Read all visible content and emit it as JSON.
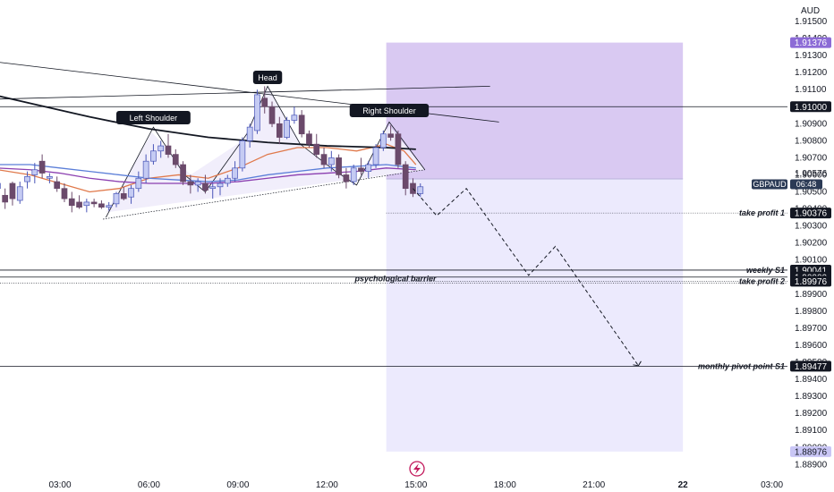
{
  "chart_data": {
    "type": "candlestick",
    "symbol": "GBPAUD",
    "currency": "AUD",
    "countdown": "06:48",
    "current_price": "1.90576",
    "y_range": [
      1.8885,
      1.916
    ],
    "y_ticks": [
      "1.91500",
      "1.91400",
      "1.91300",
      "1.91200",
      "1.91100",
      "1.91000",
      "1.90900",
      "1.90800",
      "1.90700",
      "1.90600",
      "1.90500",
      "1.90400",
      "1.90300",
      "1.90200",
      "1.90100",
      "1.90000",
      "1.89900",
      "1.89800",
      "1.89700",
      "1.89600",
      "1.89500",
      "1.89400",
      "1.89300",
      "1.89200",
      "1.89100",
      "1.89000",
      "1.88900"
    ],
    "x_ticks": [
      {
        "label": "03:00",
        "t": 3
      },
      {
        "label": "06:00",
        "t": 6
      },
      {
        "label": "09:00",
        "t": 9
      },
      {
        "label": "12:00",
        "t": 12
      },
      {
        "label": "15:00",
        "t": 15
      },
      {
        "label": "18:00",
        "t": 18
      },
      {
        "label": "21:00",
        "t": 21
      },
      {
        "label": "22",
        "t": 24
      },
      {
        "label": "03:00",
        "t": 27
      }
    ],
    "x_range": [
      1,
      28
    ],
    "candles": [
      [
        0.9,
        1.9052,
        1.9059,
        1.9045,
        1.9055
      ],
      [
        1.15,
        1.9048,
        1.9052,
        1.904,
        1.9044
      ],
      [
        1.4,
        1.9055,
        1.9056,
        1.9042,
        1.9046
      ],
      [
        1.65,
        1.9045,
        1.9056,
        1.9043,
        1.9053
      ],
      [
        1.9,
        1.9056,
        1.9062,
        1.9052,
        1.9059
      ],
      [
        2.15,
        1.906,
        1.9067,
        1.9055,
        1.9063
      ],
      [
        2.4,
        1.9068,
        1.9072,
        1.9058,
        1.9061
      ],
      [
        2.65,
        1.9058,
        1.9061,
        1.9055,
        1.9059
      ],
      [
        2.9,
        1.9056,
        1.9059,
        1.905,
        1.9052
      ],
      [
        3.15,
        1.9052,
        1.9055,
        1.9044,
        1.9046
      ],
      [
        3.4,
        1.9046,
        1.905,
        1.9038,
        1.9042
      ],
      [
        3.65,
        1.9044,
        1.9048,
        1.904,
        1.9041
      ],
      [
        3.9,
        1.9042,
        1.9046,
        1.9038,
        1.9044
      ],
      [
        4.15,
        1.9044,
        1.9046,
        1.9041,
        1.9043
      ],
      [
        4.4,
        1.9043,
        1.9045,
        1.904,
        1.9041
      ],
      [
        4.65,
        1.9041,
        1.9044,
        1.9039,
        1.9042
      ],
      [
        4.9,
        1.9043,
        1.905,
        1.9041,
        1.9049
      ],
      [
        5.15,
        1.9049,
        1.9053,
        1.9045,
        1.9046
      ],
      [
        5.4,
        1.9047,
        1.9054,
        1.9043,
        1.9052
      ],
      [
        5.65,
        1.9052,
        1.9062,
        1.905,
        1.9058
      ],
      [
        5.9,
        1.9058,
        1.9072,
        1.9055,
        1.9068
      ],
      [
        6.15,
        1.9068,
        1.9078,
        1.9066,
        1.9074
      ],
      [
        6.4,
        1.9074,
        1.908,
        1.907,
        1.9077
      ],
      [
        6.65,
        1.9077,
        1.9084,
        1.907,
        1.9072
      ],
      [
        6.9,
        1.9072,
        1.9075,
        1.9064,
        1.9066
      ],
      [
        7.15,
        1.9066,
        1.9068,
        1.9054,
        1.9056
      ],
      [
        7.4,
        1.9056,
        1.906,
        1.9049,
        1.9054
      ],
      [
        7.65,
        1.9054,
        1.9058,
        1.905,
        1.9056
      ],
      [
        7.9,
        1.9055,
        1.906,
        1.9049,
        1.9051
      ],
      [
        8.15,
        1.9052,
        1.9055,
        1.9046,
        1.9053
      ],
      [
        8.4,
        1.9053,
        1.9058,
        1.9048,
        1.9055
      ],
      [
        8.65,
        1.9055,
        1.906,
        1.9053,
        1.9058
      ],
      [
        8.9,
        1.9058,
        1.9068,
        1.9056,
        1.9064
      ],
      [
        9.15,
        1.9064,
        1.9082,
        1.9062,
        1.908
      ],
      [
        9.4,
        1.908,
        1.909,
        1.9076,
        1.9088
      ],
      [
        9.65,
        1.9086,
        1.911,
        1.9084,
        1.9107
      ],
      [
        9.9,
        1.9105,
        1.9112,
        1.9096,
        1.91
      ],
      [
        10.15,
        1.91,
        1.9103,
        1.9088,
        1.909
      ],
      [
        10.4,
        1.909,
        1.9094,
        1.9078,
        1.9082
      ],
      [
        10.65,
        1.9082,
        1.9094,
        1.9081,
        1.9092
      ],
      [
        10.9,
        1.9092,
        1.91,
        1.909,
        1.9095
      ],
      [
        11.15,
        1.9095,
        1.9098,
        1.9082,
        1.9084
      ],
      [
        11.4,
        1.9084,
        1.9086,
        1.9076,
        1.9078
      ],
      [
        11.65,
        1.9078,
        1.9084,
        1.907,
        1.9072
      ],
      [
        11.9,
        1.9072,
        1.9076,
        1.9064,
        1.9066
      ],
      [
        12.15,
        1.9066,
        1.9074,
        1.9062,
        1.907
      ],
      [
        12.4,
        1.907,
        1.9072,
        1.9058,
        1.906
      ],
      [
        12.65,
        1.906,
        1.9064,
        1.9052,
        1.9056
      ],
      [
        12.9,
        1.9056,
        1.9066,
        1.9054,
        1.9064
      ],
      [
        13.15,
        1.9064,
        1.907,
        1.906,
        1.9062
      ],
      [
        13.4,
        1.9062,
        1.9068,
        1.9058,
        1.9066
      ],
      [
        13.65,
        1.9066,
        1.9078,
        1.9064,
        1.9076
      ],
      [
        13.9,
        1.9076,
        1.9086,
        1.9074,
        1.9084
      ],
      [
        14.15,
        1.9084,
        1.9089,
        1.908,
        1.9082
      ],
      [
        14.4,
        1.9084,
        1.9086,
        1.9064,
        1.9066
      ],
      [
        14.65,
        1.9066,
        1.9068,
        1.9048,
        1.9052
      ],
      [
        14.9,
        1.9055,
        1.9058,
        1.9047,
        1.9049
      ],
      [
        15.15,
        1.9049,
        1.9055,
        1.9047,
        1.9053
      ]
    ],
    "moving_averages": [
      {
        "color": "#e0794b",
        "points": [
          [
            0.9,
            1.9063
          ],
          [
            2,
            1.906
          ],
          [
            3,
            1.9055
          ],
          [
            4,
            1.905
          ],
          [
            5,
            1.9052
          ],
          [
            6,
            1.9058
          ],
          [
            7,
            1.906
          ],
          [
            8,
            1.9058
          ],
          [
            9,
            1.9064
          ],
          [
            10,
            1.9072
          ],
          [
            11,
            1.9076
          ],
          [
            12,
            1.9076
          ],
          [
            13,
            1.9074
          ],
          [
            14,
            1.9078
          ],
          [
            14.6,
            1.9074
          ],
          [
            15,
            1.9066
          ]
        ]
      },
      {
        "color": "#5b7ed8",
        "points": [
          [
            0.9,
            1.9066
          ],
          [
            2,
            1.9066
          ],
          [
            3,
            1.9064
          ],
          [
            4,
            1.9062
          ],
          [
            5,
            1.906
          ],
          [
            6,
            1.9058
          ],
          [
            7,
            1.9057
          ],
          [
            8,
            1.9056
          ],
          [
            9,
            1.9057
          ],
          [
            10,
            1.906
          ],
          [
            11,
            1.9062
          ],
          [
            12,
            1.9064
          ],
          [
            13,
            1.9065
          ],
          [
            14,
            1.9066
          ],
          [
            15,
            1.9064
          ]
        ]
      },
      {
        "color": "#8b3fb0",
        "points": [
          [
            0.9,
            1.9064
          ],
          [
            2,
            1.9063
          ],
          [
            3,
            1.9061
          ],
          [
            4,
            1.9058
          ],
          [
            5,
            1.9056
          ],
          [
            6,
            1.9055
          ],
          [
            7,
            1.9055
          ],
          [
            8,
            1.9055
          ],
          [
            9,
            1.9056
          ],
          [
            10,
            1.9058
          ],
          [
            11,
            1.906
          ],
          [
            12,
            1.9061
          ],
          [
            13,
            1.9062
          ],
          [
            14,
            1.9064
          ],
          [
            15,
            1.9063
          ]
        ]
      }
    ],
    "long_ma": {
      "color": "#131722",
      "points": [
        [
          0,
          1.911
        ],
        [
          2,
          1.9102
        ],
        [
          4,
          1.9094
        ],
        [
          6,
          1.9087
        ],
        [
          8,
          1.9082
        ],
        [
          10,
          1.9079
        ],
        [
          12,
          1.9077
        ],
        [
          14,
          1.9076
        ],
        [
          15,
          1.9075
        ]
      ]
    },
    "pattern_labels": [
      "Left Shoulder",
      "Head",
      "Right Shoulder"
    ],
    "horizontal_levels": [
      {
        "price": 1.91,
        "label": "",
        "value_tag": "1.91000"
      },
      {
        "price": 1.90041,
        "label": "weekly S1",
        "value_tag": "1.90041"
      },
      {
        "price": 1.9,
        "label": "",
        "value_tag": "1.90000"
      },
      {
        "price": 1.89477,
        "label": "monthly pivot point S1",
        "value_tag": "1.89477"
      }
    ],
    "dotted_levels": [
      {
        "price": 1.90376,
        "label": "take profit 1",
        "value_tag": "1.90376"
      },
      {
        "price": 1.89976,
        "label": "take profit 2",
        "value_tag": "1.89976"
      },
      {
        "price": 1.89976,
        "label": "psychological barrier"
      }
    ],
    "position": {
      "entry": 1.90576,
      "stop": 1.91376,
      "target": 1.88976,
      "stop_tag": "1.91376",
      "target_tag": "1.88976",
      "t_start": 14.0,
      "t_end": 24.0
    },
    "projection": [
      [
        14.9,
        1.9052
      ],
      [
        15.7,
        1.9036
      ],
      [
        16.7,
        1.9052
      ],
      [
        18.8,
        1.9001
      ],
      [
        19.7,
        1.9018
      ],
      [
        22.5,
        1.8948
      ]
    ],
    "colors": {
      "bull_body": "#c5cbf3",
      "bull_border": "#4a56b8",
      "bear": "#6b4a6b",
      "stop_zone": "#d9c9f2",
      "target_zone": "#eceafd",
      "accent": "#8c6bd6",
      "line": "#131722",
      "pattern_fill": "#f1eefb",
      "pattern_line": "#131722",
      "pattern_neckline": "#131722"
    },
    "icons": [
      "lightning-icon"
    ]
  }
}
